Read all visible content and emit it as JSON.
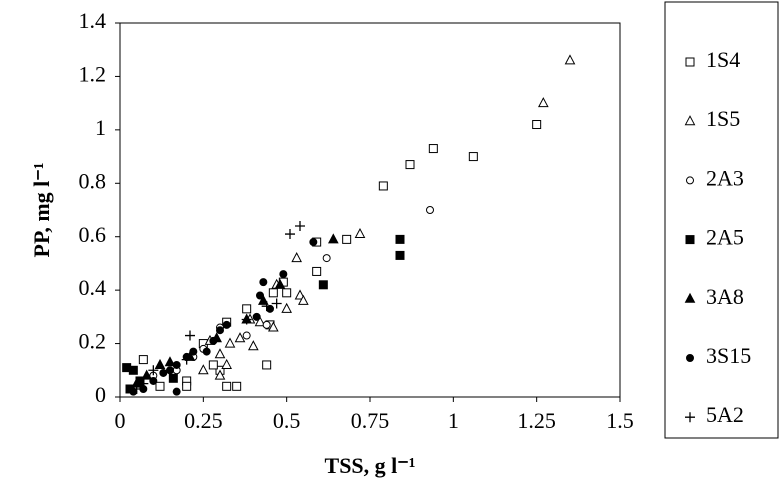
{
  "chart_data": {
    "type": "scatter",
    "x_label": "TSS, g l⁻¹",
    "y_label": "PP, mg l⁻¹",
    "xlim": [
      0,
      1.5
    ],
    "xticks": [
      0,
      0.25,
      0.5,
      0.75,
      1,
      1.25,
      1.5
    ],
    "ylim": [
      0,
      1.4
    ],
    "yticks": [
      0,
      0.2,
      0.4,
      0.6,
      0.8,
      1,
      1.2,
      1.4
    ],
    "legend": "right",
    "series": [
      {
        "name": "1S4",
        "marker": "square-open",
        "color": "#000000",
        "x": [
          0.94,
          1.06,
          0.87,
          0.79,
          1.25,
          0.68,
          0.59,
          0.59,
          0.5,
          0.45,
          0.38,
          0.32,
          0.35,
          0.32,
          0.07,
          0.2,
          0.2,
          0.12,
          0.3,
          0.28,
          0.25,
          0.46,
          0.49,
          0.44
        ],
        "y": [
          0.93,
          0.9,
          0.87,
          0.79,
          1.02,
          0.59,
          0.58,
          0.47,
          0.39,
          0.27,
          0.33,
          0.28,
          0.04,
          0.04,
          0.14,
          0.06,
          0.04,
          0.04,
          0.1,
          0.12,
          0.2,
          0.39,
          0.43,
          0.12
        ]
      },
      {
        "name": "1S5",
        "marker": "triangle-open",
        "color": "#000000",
        "x": [
          1.35,
          1.27,
          0.72,
          0.53,
          0.54,
          0.55,
          0.5,
          0.46,
          0.42,
          0.39,
          0.4,
          0.33,
          0.3,
          0.3,
          0.32,
          0.25,
          0.36,
          0.27,
          0.47
        ],
        "y": [
          1.26,
          1.1,
          0.61,
          0.52,
          0.38,
          0.36,
          0.33,
          0.26,
          0.28,
          0.29,
          0.19,
          0.2,
          0.16,
          0.08,
          0.12,
          0.1,
          0.22,
          0.21,
          0.42
        ]
      },
      {
        "name": "2A3",
        "marker": "circle-open",
        "color": "#000000",
        "x": [
          0.93,
          0.62,
          0.44,
          0.38,
          0.3,
          0.25,
          0.22,
          0.17,
          0.1
        ],
        "y": [
          0.7,
          0.52,
          0.27,
          0.23,
          0.26,
          0.18,
          0.15,
          0.1,
          0.08
        ]
      },
      {
        "name": "2A5",
        "marker": "square",
        "color": "#000000",
        "x": [
          0.84,
          0.84,
          0.61,
          0.02,
          0.04,
          0.03,
          0.06,
          0.16
        ],
        "y": [
          0.59,
          0.53,
          0.42,
          0.11,
          0.1,
          0.03,
          0.06,
          0.07
        ]
      },
      {
        "name": "3A8",
        "marker": "triangle",
        "color": "#000000",
        "x": [
          0.64,
          0.43,
          0.48,
          0.38,
          0.15,
          0.12,
          0.08,
          0.05,
          0.21,
          0.29
        ],
        "y": [
          0.59,
          0.36,
          0.42,
          0.29,
          0.13,
          0.12,
          0.08,
          0.05,
          0.15,
          0.22
        ]
      },
      {
        "name": "3S15",
        "marker": "circle",
        "color": "#000000",
        "x": [
          0.58,
          0.49,
          0.43,
          0.42,
          0.45,
          0.41,
          0.32,
          0.3,
          0.28,
          0.26,
          0.22,
          0.17,
          0.15,
          0.16,
          0.17,
          0.1,
          0.07,
          0.04,
          0.06,
          0.2,
          0.13
        ],
        "y": [
          0.58,
          0.46,
          0.43,
          0.38,
          0.33,
          0.3,
          0.27,
          0.25,
          0.21,
          0.17,
          0.17,
          0.12,
          0.1,
          0.07,
          0.02,
          0.06,
          0.03,
          0.02,
          0.05,
          0.15,
          0.09
        ]
      },
      {
        "name": "5A2",
        "marker": "plus",
        "color": "#000000",
        "x": [
          0.54,
          0.51,
          0.44,
          0.47,
          0.21,
          0.2,
          0.1,
          0.07,
          0.05,
          0.38
        ],
        "y": [
          0.64,
          0.61,
          0.34,
          0.35,
          0.23,
          0.14,
          0.1,
          0.05,
          0.03,
          0.29
        ]
      }
    ]
  }
}
